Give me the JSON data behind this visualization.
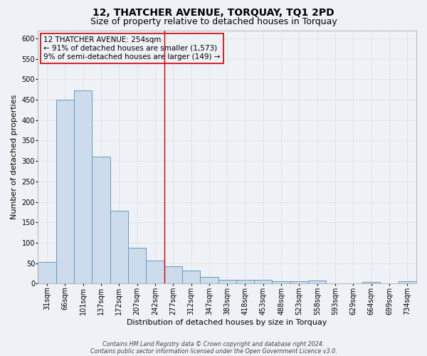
{
  "title": "12, THATCHER AVENUE, TORQUAY, TQ1 2PD",
  "subtitle": "Size of property relative to detached houses in Torquay",
  "xlabel": "Distribution of detached houses by size in Torquay",
  "ylabel": "Number of detached properties",
  "categories": [
    "31sqm",
    "66sqm",
    "101sqm",
    "137sqm",
    "172sqm",
    "207sqm",
    "242sqm",
    "277sqm",
    "312sqm",
    "347sqm",
    "383sqm",
    "418sqm",
    "453sqm",
    "488sqm",
    "523sqm",
    "558sqm",
    "593sqm",
    "629sqm",
    "664sqm",
    "699sqm",
    "734sqm"
  ],
  "values": [
    52,
    450,
    472,
    310,
    178,
    88,
    57,
    42,
    32,
    17,
    10,
    10,
    10,
    6,
    6,
    8,
    1,
    0,
    4,
    0,
    5
  ],
  "bar_color": "#ccdcec",
  "bar_edge_color": "#6699bb",
  "grid_color": "#dddddd",
  "vline_x": 6.5,
  "vline_color": "#cc0000",
  "annotation_line1": "12 THATCHER AVENUE: 254sqm",
  "annotation_line2": "← 91% of detached houses are smaller (1,573)",
  "annotation_line3": "9% of semi-detached houses are larger (149) →",
  "annotation_box_edge": "#cc0000",
  "footer_line1": "Contains HM Land Registry data © Crown copyright and database right 2024.",
  "footer_line2": "Contains public sector information licensed under the Open Government Licence v3.0.",
  "ylim": [
    0,
    620
  ],
  "yticks": [
    0,
    50,
    100,
    150,
    200,
    250,
    300,
    350,
    400,
    450,
    500,
    550,
    600
  ],
  "background_color": "#eef2f6",
  "title_fontsize": 10,
  "subtitle_fontsize": 9,
  "axis_label_fontsize": 8,
  "tick_fontsize": 7,
  "annotation_fontsize": 7.5,
  "footer_fontsize": 5.8
}
